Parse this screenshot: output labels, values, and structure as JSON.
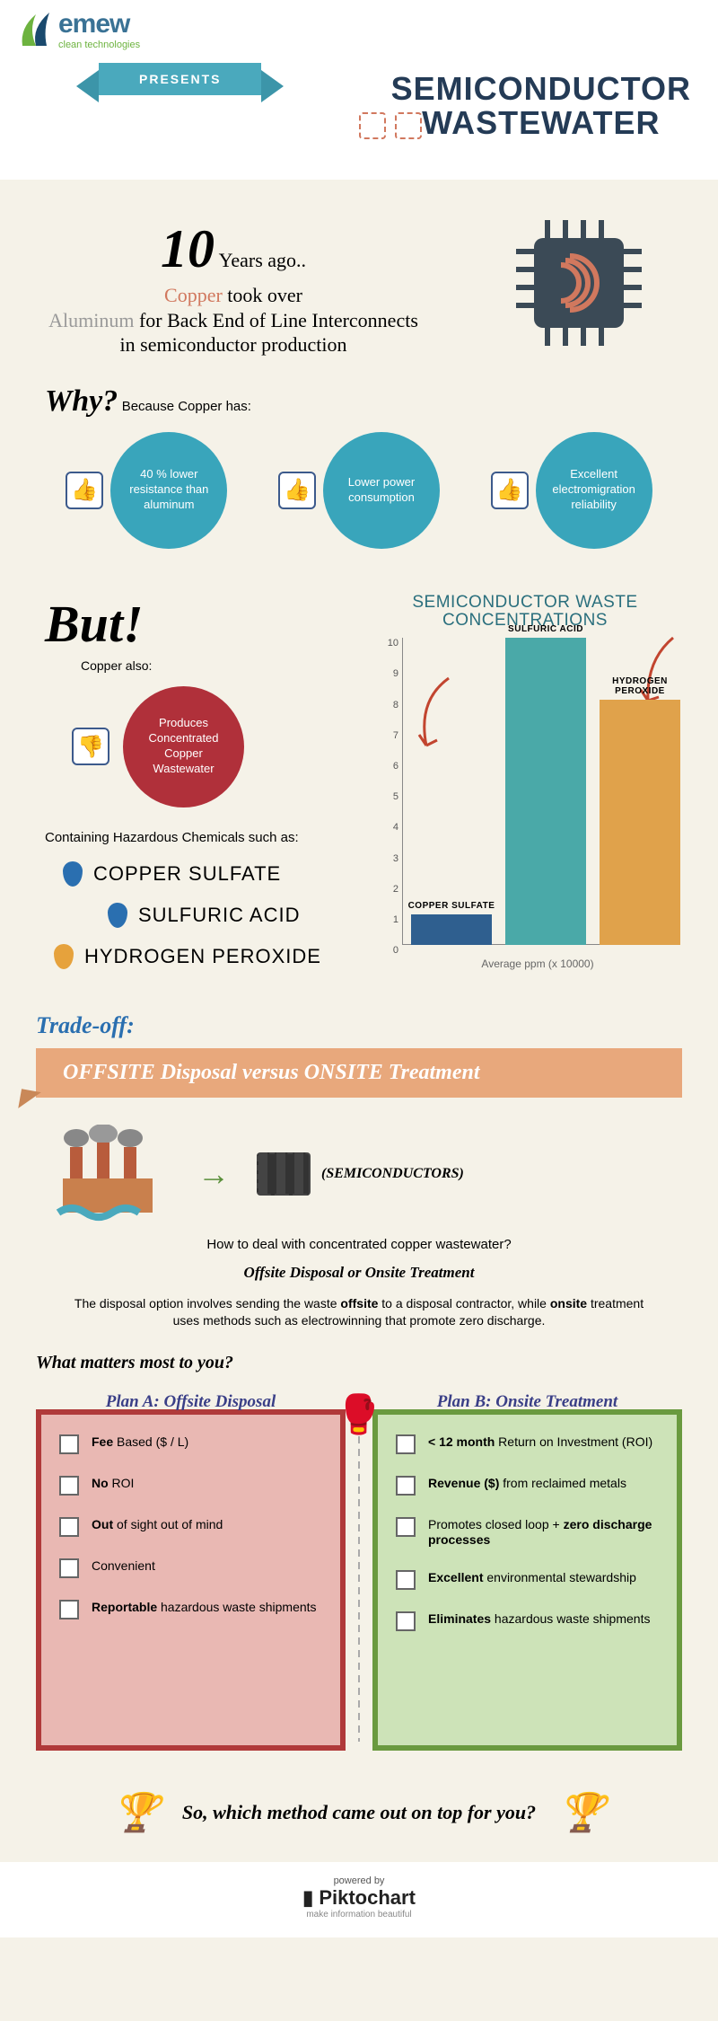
{
  "brand": {
    "name": "emew",
    "tagline": "clean technologies",
    "name_color": "#3a7295",
    "tag_color": "#6db33f",
    "swoosh_colors": [
      "#6db33f",
      "#1a4a6e"
    ]
  },
  "header": {
    "presents": "PRESENTS",
    "title_line1": "SEMICONDUCTOR",
    "title_line2": "WASTEWATER",
    "title_color": "#243b56",
    "ribbon_bg": "#4aa9bd"
  },
  "intro": {
    "big_number": "10",
    "line1": "Years ago..",
    "copper": "Copper",
    "mid": " took over ",
    "aluminum": "Aluminum",
    "line2": " for Back End of Line Interconnects in semiconductor production",
    "copper_color": "#d1785e",
    "aluminum_color": "#9a9a9a",
    "chip_body_color": "#3b4a56",
    "chip_coil_color": "#d1785e"
  },
  "why": {
    "heading": "Why?",
    "subtext": "Because Copper has:",
    "circle_bg": "#39a5bb",
    "items": [
      "40 % lower resistance than aluminum",
      "Lower power consumption",
      "Excellent electromigration reliability"
    ]
  },
  "but": {
    "heading": "But!",
    "subtext": "Copper also:",
    "badge_text": "Produces Concentrated Copper Wastewater",
    "badge_bg": "#b0303a",
    "haz_intro": "Containing Hazardous Chemicals such as:",
    "chemicals": [
      {
        "name": "COPPER SULFATE",
        "drop_color": "#2a6fb0"
      },
      {
        "name": "SULFURIC ACID",
        "drop_color": "#2a6fb0"
      },
      {
        "name": "HYDROGEN PEROXIDE",
        "drop_color": "#e6a23c"
      }
    ]
  },
  "chart": {
    "title_line1": "SEMICONDUCTOR WASTE",
    "title_line2": "CONCENTRATIONS",
    "title_color": "#2a6f7d",
    "type": "bar",
    "ylim": [
      0,
      10
    ],
    "yticks": [
      0,
      1,
      2,
      3,
      4,
      5,
      6,
      7,
      8,
      9,
      10
    ],
    "xaxis_label": "Average ppm (x 10000)",
    "bars": [
      {
        "label": "COPPER SULFATE",
        "value": 1,
        "color": "#2f5f8f"
      },
      {
        "label": "SULFURIC ACID",
        "value": 10,
        "color": "#4aa9a8"
      },
      {
        "label": "HYDROGEN PEROXIDE",
        "value": 8,
        "color": "#e0a24b"
      }
    ],
    "arrow_color": "#c2452f"
  },
  "tradeoff": {
    "heading": "Trade-off:",
    "heading_color": "#2a6fb0",
    "banner": "OFFSITE Disposal versus ONSITE Treatment",
    "banner_bg": "#e8a87c",
    "semis_label": "(SEMICONDUCTORS)",
    "deal_question": "How to deal with concentrated copper wastewater?",
    "options_line": "Offsite Disposal   or   Onsite Treatment",
    "desc_html": "The disposal option involves sending the waste <b>offsite</b> to a disposal contractor, while <b>onsite</b> treatment uses methods such as electrowinning that promote zero discharge."
  },
  "matters": {
    "heading": "What matters most to you?",
    "planA": {
      "title": "Plan A: Offsite Disposal",
      "title_color": "#3a3f87",
      "bg": "#e9b8b3",
      "border": "#b03a3a",
      "items": [
        "<b>Fee</b> Based ($ / L)",
        "<b>No</b> ROI",
        "<b>Out</b> of sight out of mind",
        "Convenient",
        "<b>Reportable</b> hazardous waste shipments"
      ]
    },
    "planB": {
      "title": "Plan B: Onsite Treatment",
      "title_color": "#3a3f87",
      "bg": "#cde3b8",
      "border": "#6a9a3f",
      "items": [
        "<b>&lt; 12 month</b> Return on Investment (ROI)",
        "<b>Revenue ($)</b> from reclaimed metals",
        "Promotes closed loop + <b>zero discharge processes</b>",
        "<b>Excellent</b> environmental stewardship",
        "<b>Eliminates</b> hazardous waste shipments"
      ]
    }
  },
  "final": {
    "question": "So, which method came out on top for you?"
  },
  "footer": {
    "powered": "powered by",
    "name": "Piktochart",
    "tag": "make information beautiful"
  }
}
